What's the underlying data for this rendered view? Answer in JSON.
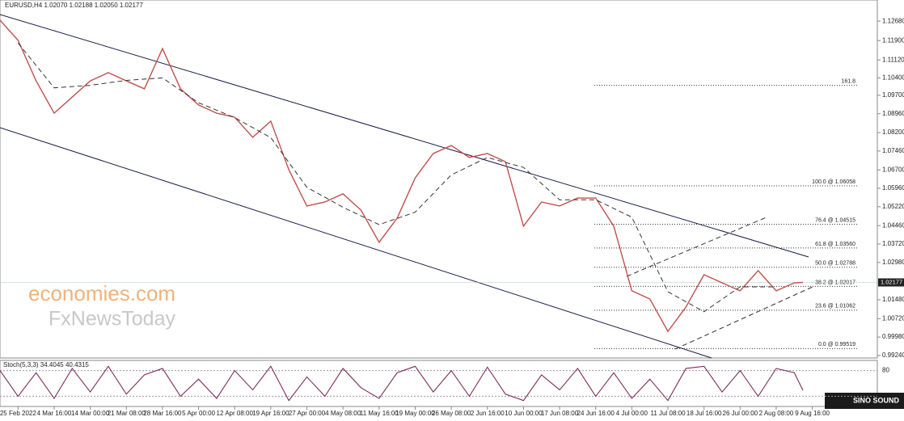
{
  "chart_data": {
    "type": "line",
    "title": "EURUSD,H4  1.02070 1.02188 1.02050 1.02177",
    "categories": [
      "25 Feb 2022",
      "4 Mar 16:00",
      "14 Mar 00:00",
      "21 Mar 08:00",
      "28 Mar 16:00",
      "5 Apr 00:00",
      "12 Apr 08:00",
      "19 Apr 16:00",
      "27 Apr 00:00",
      "4 May 08:00",
      "11 May 16:00",
      "19 May 00:00",
      "26 May 08:00",
      "2 Jun 16:00",
      "10 Jun 00:00",
      "17 Jun 08:00",
      "24 Jun 16:00",
      "4 Jul 00:00",
      "11 Jul 08:00",
      "18 Jul 16:00",
      "26 Jul 00:00",
      "2 Aug 08:00",
      "9 Aug 16:00"
    ],
    "xlim": [
      -0.5,
      23.8
    ],
    "ylim": [
      0.9914,
      1.1353
    ],
    "yticks": [
      {
        "value": 1.1268,
        "label": "1.12680"
      },
      {
        "value": 1.119,
        "label": "1.11900"
      },
      {
        "value": 1.1112,
        "label": "1.11120"
      },
      {
        "value": 1.104,
        "label": "1.10400"
      },
      {
        "value": 1.097,
        "label": "1.09700"
      },
      {
        "value": 1.0896,
        "label": "1.08960"
      },
      {
        "value": 1.082,
        "label": "1.08200"
      },
      {
        "value": 1.0746,
        "label": "1.07460"
      },
      {
        "value": 1.067,
        "label": "1.06700"
      },
      {
        "value": 1.0596,
        "label": "1.05960"
      },
      {
        "value": 1.0522,
        "label": "1.05220"
      },
      {
        "value": 1.0446,
        "label": "1.04460"
      },
      {
        "value": 1.0372,
        "label": "1.03720"
      },
      {
        "value": 1.0298,
        "label": "1.02980"
      },
      {
        "value": 1.0148,
        "label": "1.01480"
      },
      {
        "value": 1.0072,
        "label": "1.00720"
      },
      {
        "value": 0.9998,
        "label": "0.99980"
      },
      {
        "value": 0.9924,
        "label": "0.99240"
      }
    ],
    "current_price": 1.02177,
    "series": [
      {
        "name": "EURUSD",
        "color": "#c0504d",
        "style": "solid",
        "x": [
          -0.5,
          0,
          0.5,
          1,
          1.5,
          2,
          2.5,
          3,
          3.5,
          4,
          4.5,
          5,
          5.5,
          6,
          6.5,
          7,
          7.5,
          8,
          8.5,
          9,
          9.5,
          10,
          10.5,
          11,
          11.5,
          12,
          12.5,
          13,
          13.5,
          14,
          14.5,
          15,
          15.5,
          16,
          16.5,
          17,
          17.5,
          18,
          18.5,
          19,
          19.5,
          20,
          20.5,
          21,
          21.5,
          21.74
        ],
        "values": [
          1.1272,
          1.1191,
          1.1028,
          1.0898,
          1.0963,
          1.1028,
          1.1061,
          1.1028,
          1.0996,
          1.1158,
          1.0996,
          1.0931,
          1.0898,
          1.0882,
          1.0801,
          1.0866,
          1.0671,
          1.0525,
          1.0541,
          1.0574,
          1.0508,
          1.0379,
          1.0476,
          1.0638,
          1.0736,
          1.0768,
          1.072,
          1.0736,
          1.0703,
          1.0444,
          1.0541,
          1.0525,
          1.0557,
          1.0557,
          1.0444,
          1.0184,
          1.0151,
          1.0021,
          1.0119,
          1.0249,
          1.0216,
          1.0184,
          1.0265,
          1.0184,
          1.0216,
          1.02177
        ]
      },
      {
        "name": "MA",
        "color": "#333333",
        "style": "dashed",
        "x": [
          0,
          1,
          2,
          3,
          4,
          5,
          6,
          7,
          8,
          9,
          10,
          11,
          12,
          13,
          14,
          15,
          16,
          17,
          18,
          19,
          20,
          21
        ],
        "values": [
          1.118,
          1.1,
          1.101,
          1.103,
          1.104,
          1.094,
          1.088,
          1.08,
          1.06,
          1.052,
          1.045,
          1.05,
          1.065,
          1.072,
          1.068,
          1.055,
          1.055,
          1.048,
          1.018,
          1.01,
          1.02,
          1.02
        ]
      }
    ],
    "fib_levels": [
      {
        "label": "161.8",
        "price": 1.10099
      },
      {
        "label": "100.0 @ 1.06058",
        "price": 1.06058
      },
      {
        "label": "76.4 @ 1.04515",
        "price": 1.04515
      },
      {
        "label": "61.8 @ 1.03560",
        "price": 1.0356
      },
      {
        "label": "50.0 @ 1.02788",
        "price": 1.02788
      },
      {
        "label": "38.2 @ 1.02017",
        "price": 1.02017
      },
      {
        "label": "23.6 @ 1.01062",
        "price": 1.01062
      },
      {
        "label": "0.0 @ 0.99519",
        "price": 0.99519
      }
    ],
    "oscillator": {
      "title": "Stoch(5,3,3) 34.4045 40.4315",
      "ylim": [
        0,
        100
      ],
      "yticks": [
        80
      ],
      "levels": [
        80,
        20
      ],
      "color": "#7b2d5b",
      "x": [
        -0.5,
        0,
        0.5,
        1,
        1.5,
        2,
        2.5,
        3,
        3.5,
        4,
        4.5,
        5,
        5.5,
        6,
        6.5,
        7,
        7.5,
        8,
        8.5,
        9,
        9.5,
        10,
        10.5,
        11,
        11.5,
        12,
        12.5,
        13,
        13.5,
        14,
        14.5,
        15,
        15.5,
        16,
        16.5,
        17,
        17.5,
        18,
        18.5,
        19,
        19.5,
        20,
        20.5,
        21,
        21.5,
        21.74
      ],
      "values": [
        80,
        20,
        75,
        15,
        85,
        30,
        90,
        25,
        70,
        85,
        20,
        60,
        15,
        80,
        35,
        90,
        10,
        65,
        20,
        85,
        40,
        15,
        75,
        90,
        30,
        80,
        20,
        88,
        25,
        10,
        70,
        35,
        85,
        20,
        75,
        15,
        60,
        10,
        85,
        90,
        30,
        80,
        20,
        85,
        75,
        34
      ]
    },
    "watermarks": [
      "economies.com",
      "FxNewsToday",
      "SINO SOUND"
    ]
  }
}
